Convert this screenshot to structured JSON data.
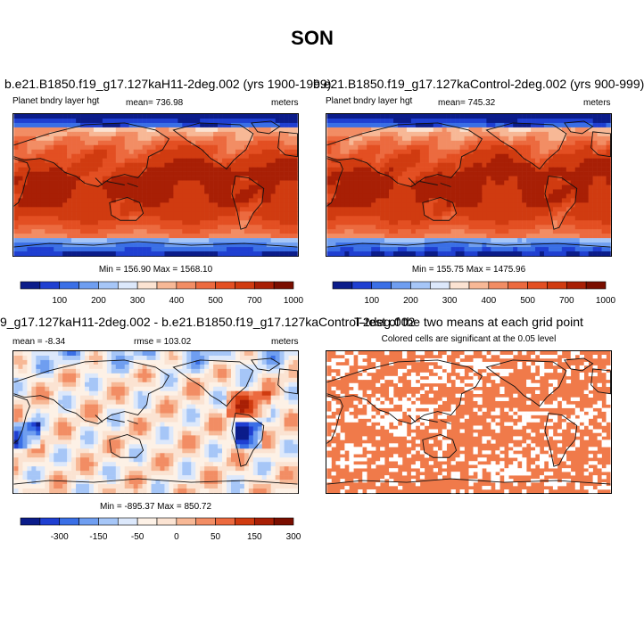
{
  "title": "SON",
  "chart_data": [
    {
      "type": "heatmap",
      "title": "b.e21.B1850.f19_g17.127kaH11-2deg.002 (yrs 1900-1999)",
      "variable": "Planet bndry layer hgt",
      "mean_text": "mean= 736.98",
      "units": "meters",
      "minmax_text": "Min = 156.90 Max = 1568.10",
      "min": 156.9,
      "max": 1568.1,
      "colorbar": {
        "tick_labels": [
          "100",
          "200",
          "300",
          "400",
          "500",
          "700",
          "1000"
        ],
        "colors": [
          "#0b1c8a",
          "#1f3fd1",
          "#3a6fe6",
          "#6f9ef0",
          "#a6c6f7",
          "#dce8fb",
          "#fbe3d2",
          "#f7b896",
          "#f28d64",
          "#ec6a3f",
          "#e34f22",
          "#d03b10",
          "#a81f05",
          "#7a0e00"
        ]
      }
    },
    {
      "type": "heatmap",
      "title": "b.e21.B1850.f19_g17.127kaControl-2deg.002 (yrs 900-999)",
      "variable": "Planet bndry layer hgt",
      "mean_text": "mean= 745.32",
      "units": "meters",
      "minmax_text": "Min = 155.75 Max = 1475.96",
      "min": 155.75,
      "max": 1475.96,
      "colorbar": {
        "tick_labels": [
          "100",
          "200",
          "300",
          "400",
          "500",
          "700",
          "1000"
        ],
        "colors": [
          "#0b1c8a",
          "#1f3fd1",
          "#3a6fe6",
          "#6f9ef0",
          "#a6c6f7",
          "#dce8fb",
          "#fbe3d2",
          "#f7b896",
          "#f28d64",
          "#ec6a3f",
          "#e34f22",
          "#d03b10",
          "#a81f05",
          "#7a0e00"
        ]
      }
    },
    {
      "type": "heatmap",
      "title": "9_g17.127kaH11-2deg.002 - b.e21.B1850.f19_g17.127kaControl-2deg.002",
      "mean_text": "mean = -8.34",
      "rmse_text": "rmse = 103.02",
      "units": "meters",
      "minmax_text": "Min = -895.37 Max = 850.72",
      "min": -895.37,
      "max": 850.72,
      "colorbar": {
        "tick_labels": [
          "-300",
          "-150",
          "-50",
          "0",
          "50",
          "150",
          "300"
        ],
        "colors": [
          "#0b1c8a",
          "#1f3fd1",
          "#3a6fe6",
          "#6f9ef0",
          "#a6c6f7",
          "#dce8fb",
          "#fdf1e6",
          "#fbe3d2",
          "#f7b896",
          "#f28d64",
          "#ec6a3f",
          "#d03b10",
          "#a81f05",
          "#7a0e00"
        ]
      }
    },
    {
      "type": "heatmap",
      "title": "T-test of the two means at each grid point",
      "subtitle": "Colored cells are significant at the 0.05 level",
      "fill_color": "#f07a4a"
    }
  ]
}
